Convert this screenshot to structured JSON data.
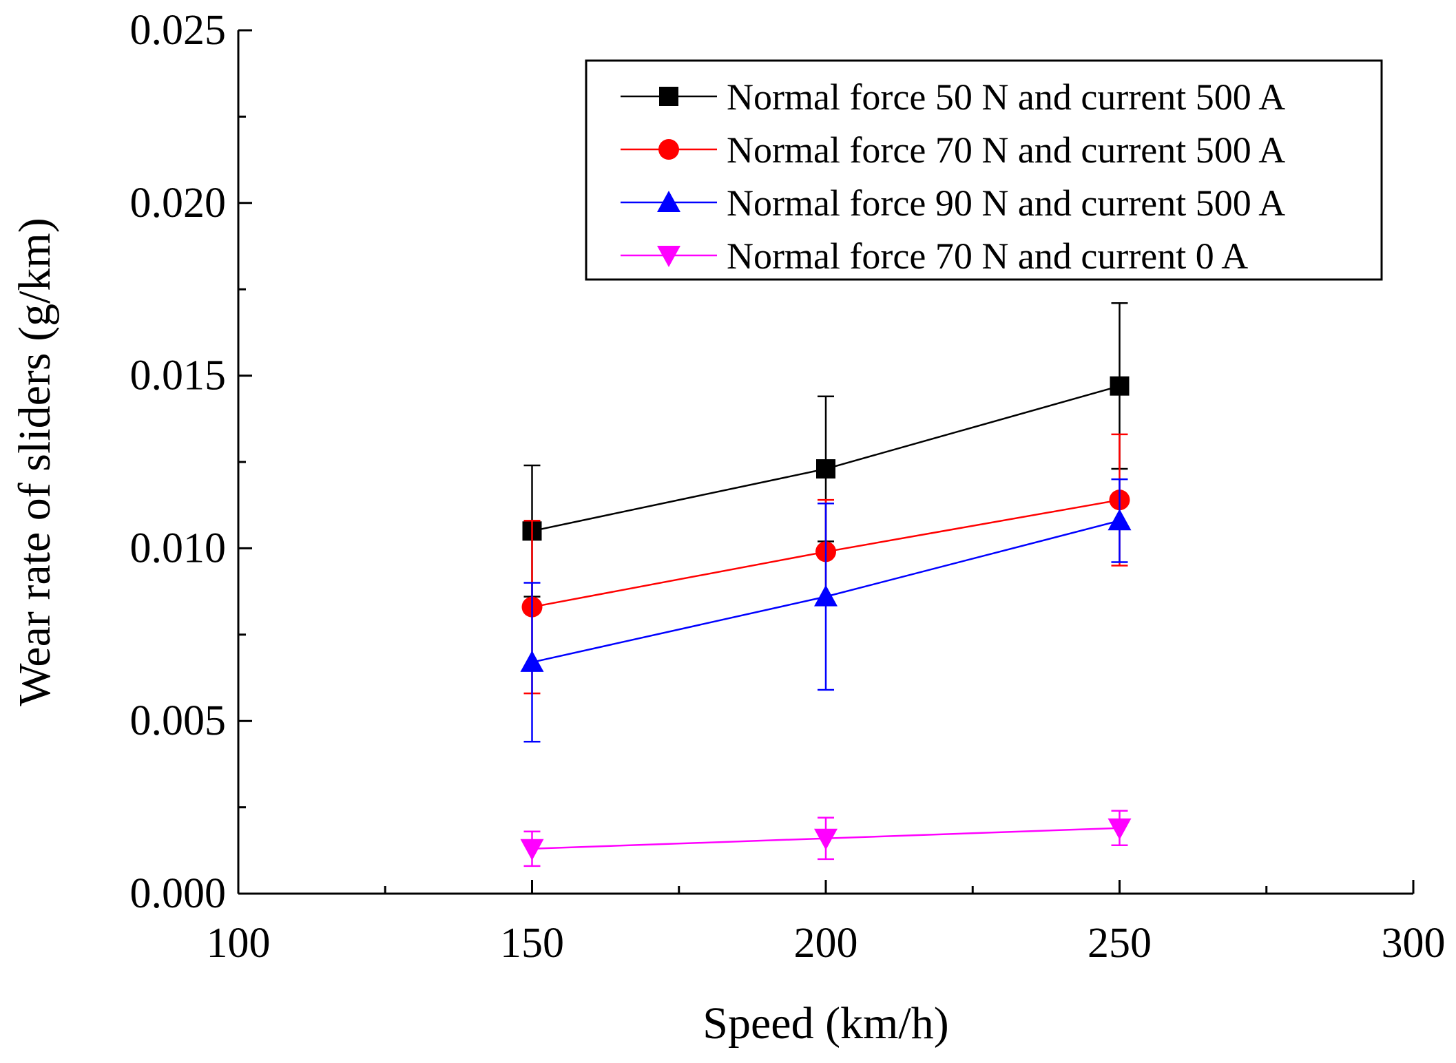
{
  "chart_data": {
    "type": "line",
    "title": "",
    "xlabel": "Speed (km/h)",
    "ylabel": "Wear rate of sliders (g/km)",
    "xlim": [
      100,
      300
    ],
    "ylim": [
      0,
      0.025
    ],
    "xticks": [
      100,
      150,
      200,
      250,
      300
    ],
    "xtick_labels": [
      "100",
      "150",
      "200",
      "250",
      "300"
    ],
    "yticks": [
      0,
      0.005,
      0.01,
      0.015,
      0.02,
      0.025
    ],
    "ytick_labels": [
      "0.000",
      "0.005",
      "0.010",
      "0.015",
      "0.020",
      "0.025"
    ],
    "grid": false,
    "legend_position": "top-right",
    "x": [
      150,
      200,
      250
    ],
    "series": [
      {
        "name": "Normal force 50 N and current 500 A",
        "color": "#000000",
        "marker": "square",
        "values": [
          0.0105,
          0.0123,
          0.0147
        ],
        "error": [
          0.0019,
          0.0021,
          0.0024
        ]
      },
      {
        "name": "Normal force 70 N and current 500 A",
        "color": "#ff0000",
        "marker": "circle",
        "values": [
          0.0083,
          0.0099,
          0.0114
        ],
        "error": [
          0.0025,
          0.0015,
          0.0019
        ]
      },
      {
        "name": "Normal force 90 N and current 500 A",
        "color": "#0000ff",
        "marker": "triangle-up",
        "values": [
          0.0067,
          0.0086,
          0.0108
        ],
        "error": [
          0.0023,
          0.0027,
          0.0012
        ]
      },
      {
        "name": "Normal force 70 N and current 0 A",
        "color": "#ff00ff",
        "marker": "triangle-down",
        "values": [
          0.0013,
          0.0016,
          0.0019
        ],
        "error": [
          0.0005,
          0.0006,
          0.0005
        ]
      }
    ]
  }
}
